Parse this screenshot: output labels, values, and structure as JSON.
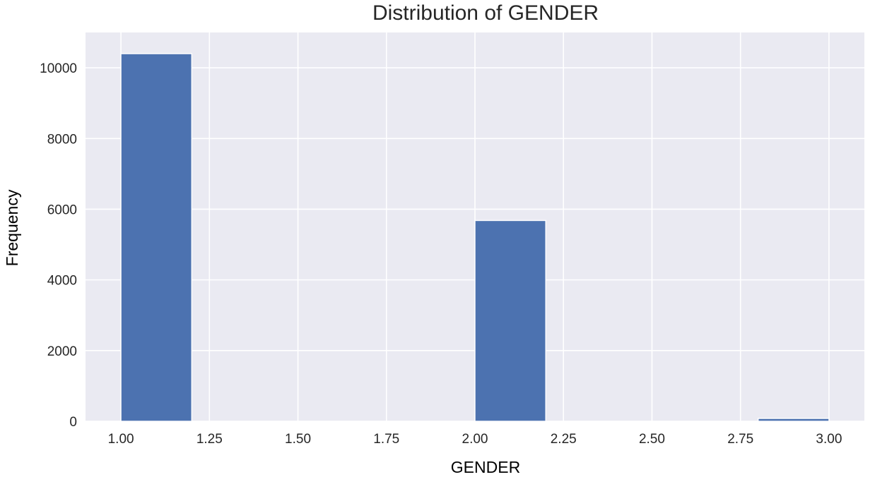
{
  "chart_data": {
    "type": "bar",
    "title": "Distribution of GENDER",
    "xlabel": "GENDER",
    "ylabel": "Frequency",
    "xlim": [
      0.9,
      3.1
    ],
    "ylim": [
      0,
      11000
    ],
    "xticks": [
      "1.00",
      "1.25",
      "1.50",
      "1.75",
      "2.00",
      "2.25",
      "2.50",
      "2.75",
      "3.00"
    ],
    "yticks": [
      "0",
      "2000",
      "4000",
      "6000",
      "8000",
      "10000"
    ],
    "bins": [
      {
        "x0": 1.0,
        "x1": 1.2,
        "value": 10400
      },
      {
        "x0": 1.2,
        "x1": 1.4,
        "value": 0
      },
      {
        "x0": 1.4,
        "x1": 1.6,
        "value": 0
      },
      {
        "x0": 1.6,
        "x1": 1.8,
        "value": 0
      },
      {
        "x0": 1.8,
        "x1": 2.0,
        "value": 0
      },
      {
        "x0": 2.0,
        "x1": 2.2,
        "value": 5680
      },
      {
        "x0": 2.2,
        "x1": 2.4,
        "value": 0
      },
      {
        "x0": 2.4,
        "x1": 2.6,
        "value": 0
      },
      {
        "x0": 2.6,
        "x1": 2.8,
        "value": 0
      },
      {
        "x0": 2.8,
        "x1": 3.0,
        "value": 80
      }
    ],
    "grid": true,
    "colors": {
      "bar": "#4c72b0",
      "plot_bg": "#eaeaf2",
      "grid": "#ffffff"
    }
  }
}
